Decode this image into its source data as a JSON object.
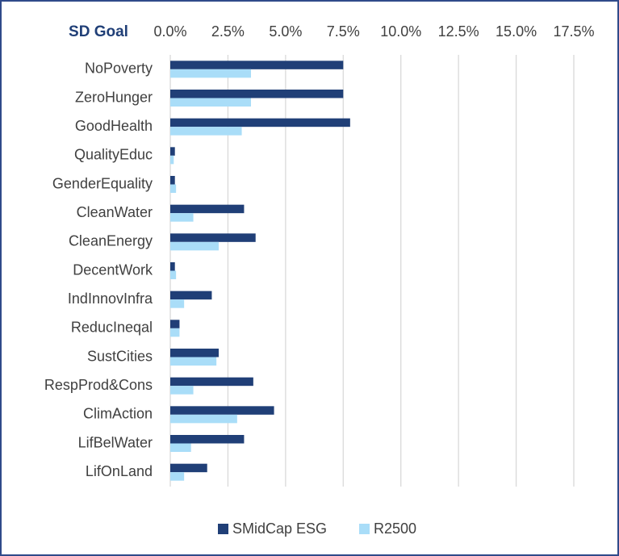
{
  "chart_data": {
    "type": "barh",
    "axis_title": "SD Goal",
    "categories": [
      "NoPoverty",
      "ZeroHunger",
      "GoodHealth",
      "QualityEduc",
      "GenderEquality",
      "CleanWater",
      "CleanEnergy",
      "DecentWork",
      "IndInnovInfra",
      "ReducIneqal",
      "SustCities",
      "RespProd&Cons",
      "ClimAction",
      "LifBelWater",
      "LifOnLand"
    ],
    "series": [
      {
        "name": "SMidCap ESG",
        "color": "#203f77",
        "values": [
          7.5,
          7.5,
          7.8,
          0.2,
          0.2,
          3.2,
          3.7,
          0.2,
          1.8,
          0.4,
          2.1,
          3.6,
          4.5,
          3.2,
          1.6
        ]
      },
      {
        "name": "R2500",
        "color": "#a9ddf8",
        "values": [
          3.5,
          3.5,
          3.1,
          0.15,
          0.25,
          1.0,
          2.1,
          0.25,
          0.6,
          0.4,
          2.0,
          1.0,
          2.9,
          0.9,
          0.6
        ]
      }
    ],
    "xlim": [
      0,
      17.5
    ],
    "xticks": [
      {
        "value": 0,
        "label": "0.0%"
      },
      {
        "value": 2.5,
        "label": "2.5%"
      },
      {
        "value": 5,
        "label": "5.0%"
      },
      {
        "value": 7.5,
        "label": "7.5%"
      },
      {
        "value": 10,
        "label": "10.0%"
      },
      {
        "value": 12.5,
        "label": "12.5%"
      },
      {
        "value": 15,
        "label": "15.0%"
      },
      {
        "value": 17.5,
        "label": "17.5%"
      }
    ],
    "grid": true,
    "legend": "bottom"
  }
}
